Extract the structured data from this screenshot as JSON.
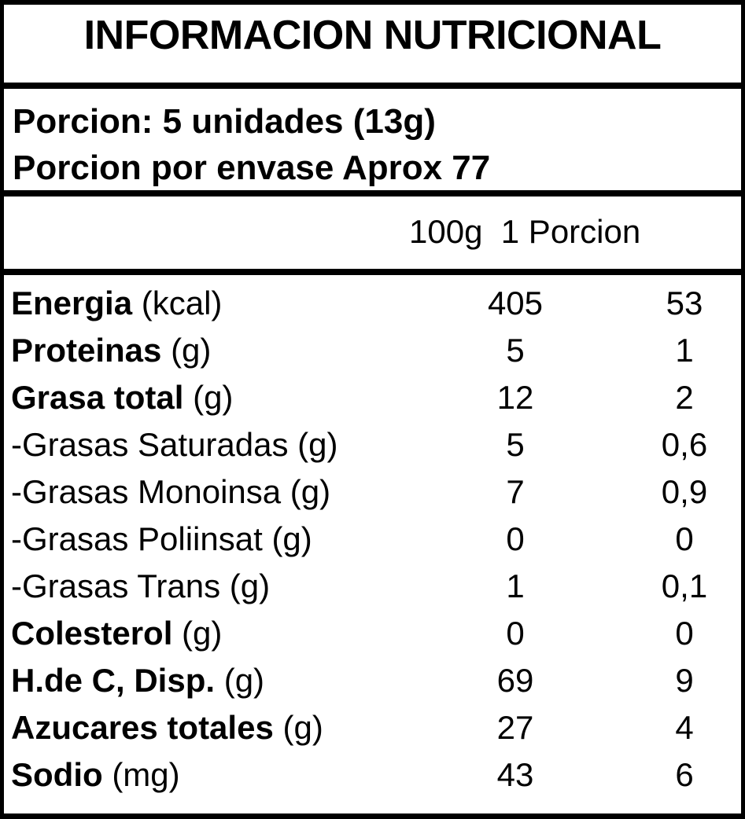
{
  "title": "INFORMACION NUTRICIONAL",
  "serving": {
    "portion": "Porcion: 5 unidades (13g)",
    "per_package": "Porcion por envase Aprox 77"
  },
  "columns": {
    "header": "100g  1 Porcion"
  },
  "rows": [
    {
      "name": "Energia",
      "unit": " (kcal)",
      "bold": true,
      "per100g": "405",
      "perPortion": "53"
    },
    {
      "name": "Proteinas",
      "unit": " (g)",
      "bold": true,
      "per100g": "5",
      "perPortion": "1"
    },
    {
      "name": "Grasa total",
      "unit": " (g)",
      "bold": true,
      "per100g": "12",
      "perPortion": "2"
    },
    {
      "name": "-Grasas Saturadas",
      "unit": " (g)",
      "bold": false,
      "per100g": "5",
      "perPortion": "0,6"
    },
    {
      "name": "-Grasas Monoinsa",
      "unit": " (g)",
      "bold": false,
      "per100g": "7",
      "perPortion": "0,9"
    },
    {
      "name": "-Grasas Poliinsat",
      "unit": " (g)",
      "bold": false,
      "per100g": "0",
      "perPortion": "0"
    },
    {
      "name": "-Grasas Trans",
      "unit": " (g)",
      "bold": false,
      "per100g": "1",
      "perPortion": "0,1"
    },
    {
      "name": "Colesterol",
      "unit": " (g)",
      "bold": true,
      "per100g": "0",
      "perPortion": "0"
    },
    {
      "name": "H.de C, Disp.",
      "unit": " (g)",
      "bold": true,
      "per100g": "69",
      "perPortion": "9"
    },
    {
      "name": "Azucares totales",
      "unit": " (g)",
      "bold": true,
      "per100g": "27",
      "perPortion": "4"
    },
    {
      "name": "Sodio",
      "unit": " (mg)",
      "bold": true,
      "per100g": "43",
      "perPortion": "6"
    }
  ]
}
